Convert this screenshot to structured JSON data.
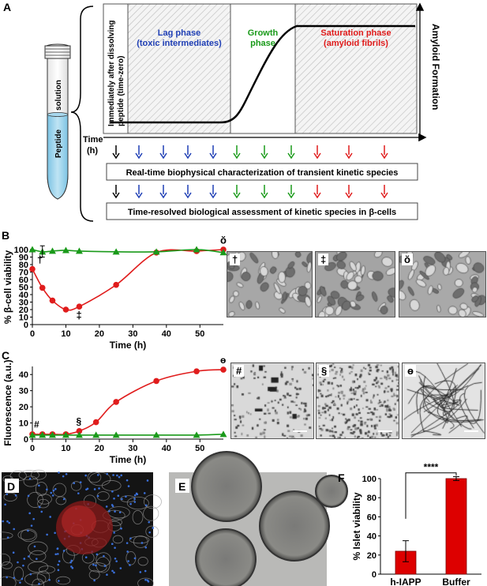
{
  "panel_labels": {
    "a": "A",
    "b": "B",
    "c": "C",
    "d": "D",
    "e": "E",
    "f": "F"
  },
  "panel_a": {
    "tube": {
      "top_label": "solution",
      "bottom_label": "Peptide"
    },
    "phase_zero": "Immediately after dissolving peptide (time-zero)",
    "lag_phase": {
      "line1": "Lag phase",
      "line2": "(toxic intermediates)"
    },
    "growth_phase": {
      "line1": "Growth",
      "line2": "phase"
    },
    "saturation_phase": {
      "line1": "Saturation phase",
      "line2": "(amyloid fibrils)"
    },
    "y_axis_label": "Amyloid Formation",
    "time_label": "Time",
    "time_unit": "(h)",
    "row1_box": "Real-time biophysical characterization of transient kinetic species",
    "row2_box": "Time-resolved biological assessment of kinetic species in β-cells",
    "arrow_colors": [
      "#000000",
      "#1f3fb5",
      "#1f3fb5",
      "#1f3fb5",
      "#1f3fb5",
      "#1a9a1a",
      "#1a9a1a",
      "#1a9a1a",
      "#e01c1c",
      "#e01c1c",
      "#e01c1c"
    ],
    "colors": {
      "lag": "#1f3fb5",
      "growth": "#1a9a1a",
      "saturation": "#e01c1c"
    }
  },
  "chart_data": [
    {
      "type": "line",
      "panel": "B",
      "ylabel": "% β-cell viability",
      "xlabel": "Time (h)",
      "xlim": [
        0,
        57
      ],
      "ylim": [
        0,
        100
      ],
      "xticks": [
        0,
        10,
        20,
        30,
        40,
        50
      ],
      "yticks": [
        0,
        10,
        20,
        30,
        40,
        50,
        60,
        70,
        80,
        90,
        100
      ],
      "series": [
        {
          "color": "#e01c1c",
          "marker": "circle",
          "x": [
            0,
            3,
            6,
            10,
            14,
            25,
            37,
            49,
            57
          ],
          "y": [
            74,
            49,
            32,
            20,
            24,
            53,
            96,
            98,
            100
          ]
        },
        {
          "color": "#1a9a1a",
          "marker": "triangle",
          "x": [
            0,
            3,
            6,
            10,
            14,
            25,
            37,
            49,
            57
          ],
          "y": [
            100,
            97,
            98,
            99,
            98,
            97,
            97,
            100,
            96
          ]
        }
      ],
      "annotations": [
        {
          "symbol": "†",
          "x": 0
        },
        {
          "symbol": "‡",
          "x": 14
        },
        {
          "symbol": "ŏ",
          "x": 57
        }
      ]
    },
    {
      "type": "line",
      "panel": "C",
      "ylabel": "Fluorescence (a.u.)",
      "xlabel": "Time (h)",
      "xlim": [
        0,
        57
      ],
      "ylim": [
        0,
        45
      ],
      "xticks": [
        0,
        10,
        20,
        30,
        40,
        50
      ],
      "yticks": [
        0,
        10,
        20,
        30,
        40
      ],
      "series": [
        {
          "color": "#e01c1c",
          "marker": "circle",
          "x": [
            0,
            3,
            6,
            10,
            14,
            19,
            25,
            37,
            49,
            57
          ],
          "y": [
            3,
            3,
            3,
            3,
            5,
            10.5,
            23,
            36,
            42,
            43
          ]
        },
        {
          "color": "#1a9a1a",
          "marker": "triangle",
          "x": [
            0,
            3,
            6,
            10,
            14,
            19,
            25,
            37,
            49,
            57
          ],
          "y": [
            2.5,
            2.5,
            2.5,
            2.5,
            2.5,
            2.5,
            2.5,
            2.5,
            2.5,
            3
          ]
        }
      ],
      "annotations": [
        {
          "symbol": "#",
          "x": 0
        },
        {
          "symbol": "§",
          "x": 14
        },
        {
          "symbol": "ɵ",
          "x": 57
        }
      ]
    },
    {
      "type": "bar",
      "panel": "F",
      "ylabel": "% Islet viability",
      "categories": [
        "h-IAPP",
        "Buffer"
      ],
      "values": [
        24,
        100
      ],
      "errors": [
        11,
        2
      ],
      "ylim": [
        0,
        100
      ],
      "yticks": [
        0,
        20,
        40,
        60,
        80,
        100
      ],
      "significance": "****",
      "color": "#dd0000"
    }
  ],
  "micro_b": [
    {
      "label": "†"
    },
    {
      "label": "‡"
    },
    {
      "label": "ŏ"
    }
  ],
  "micro_c": [
    {
      "label": "#"
    },
    {
      "label": "§"
    },
    {
      "label": "ɵ"
    }
  ]
}
